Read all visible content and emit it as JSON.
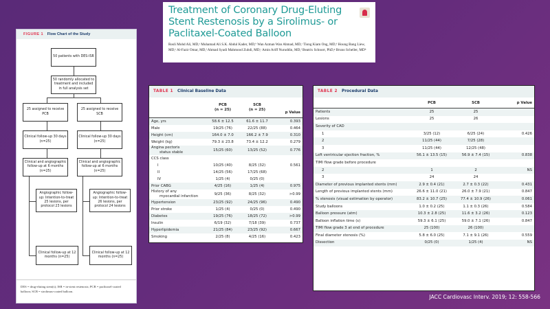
{
  "background_color": "#642c7c",
  "accent_teal": "#1f9a96",
  "label_red": "#e0344f",
  "article": {
    "title": "Treatment of Coronary Drug-Eluting Stent Restenosis by a Sirolimus- or Paclitaxel-Coated Balloon",
    "title_lines": [
      "Treatment of Coronary Drug-Eluting",
      "Stent Restenosis by a Sirolimus- or",
      "Paclitaxel-Coated Balloon"
    ],
    "authors": "Rosli Mohd Ali, MD,ᵃ Muhamad Ali S.K. Abdul Kader, MD,ᵇ Wan Azman Wan Ahmad, MD,ᶜ Tiong Kiam Ong, MD,ᵈ Houng Bang Liew, MD,ᵉ Al-Fazir Omar, MD,ᶠ Ahmad Syadi Mahmood Zuhdi, MD,ᶜ Amin Ariff Nuruddin, MD,ᶠ Beatrix Schnorr, PhD,ᵍ Bruno Scheller, MDʰ",
    "logo_icon": "crossmark-icon"
  },
  "figure": {
    "label": "FIGURE 1",
    "title": "Flow Chart of the Study",
    "boxes": {
      "enrolled": "50 patients with DES-ISR",
      "randomized": "50 randomly allocated to treatment and included in full analysis set",
      "pcb_assigned": "25 assigned to receive PCB",
      "scb_assigned": "25 assigned to receive SCB",
      "pcb_30d": "Clinical follow-up 30 days (n=25)",
      "scb_30d": "Clinical follow-up 30 days (n=25)",
      "pcb_6m": "Clinical and angiographic follow-up at 6 months (n=25)",
      "scb_6m": "Clinical and angiographic follow-up at 6 months (n=25)",
      "pcb_angio": "Angiographic follow-up: Intention-to-treat 25 lesions, per protocol 23 lesions",
      "scb_angio": "Angiographic follow-up: Intention-to-treat 26 lesions, per protocol 24 lesions",
      "pcb_12m": "Clinical follow-up at 12 months (n=25)",
      "scb_12m": "Clinical follow-up at 12 months (n=25)"
    },
    "footnote": "DES = drug-eluting stent(s); ISR = in-stent restenosis; PCB = paclitaxel-coated balloon; SCB = sirolimus-coated balloon."
  },
  "table1": {
    "label": "TABLE 1",
    "title": "Clinical Baseline Data",
    "headers": {
      "pcb": "PCB",
      "pcb_n": "(n = 25)",
      "scb": "SCB",
      "scb_n": "(n = 25)",
      "p": "p Value"
    },
    "rows": [
      {
        "label": "Age, yrs",
        "pcb": "58.6 ± 12.5",
        "scb": "61.6 ± 11.7",
        "p": "0.393"
      },
      {
        "label": "Male",
        "pcb": "19/25 (76)",
        "scb": "22/25 (88)",
        "p": "0.464"
      },
      {
        "label": "Height (cm)",
        "pcb": "164.0 ± 7.0",
        "scb": "166.2 ± 7.9",
        "p": "0.310"
      },
      {
        "label": "Weight (kg)",
        "pcb": "79.3 ± 23.8",
        "scb": "73.4 ± 12.2",
        "p": "0.279"
      },
      {
        "label": "Angina pectoris",
        "label2": "status stable",
        "pcb": "15/25 (60)",
        "scb": "13/25 (52)",
        "p": "0.776"
      },
      {
        "label": "CCS class",
        "pcb": "",
        "scb": "",
        "p": ""
      },
      {
        "label": "I",
        "pcb": "10/25 (40)",
        "scb": "8/25 (32)",
        "p": "0.561"
      },
      {
        "label": "II",
        "pcb": "14/25 (56)",
        "scb": "17/25 (68)",
        "p": ""
      },
      {
        "label": "IV",
        "pcb": "1/25 (4)",
        "scb": "0/25 (0)",
        "p": ""
      },
      {
        "label": "Prior CABG",
        "pcb": "4/25 (16)",
        "scb": "1/25 (4)",
        "p": "0.975"
      },
      {
        "label": "History of any",
        "label2": "myocardial infarction",
        "pcb": "9/25 (36)",
        "scb": "8/25 (32)",
        "p": ">0.99"
      },
      {
        "label": "Hypertension",
        "pcb": "23/25 (92)",
        "scb": "24/25 (96)",
        "p": "0.490"
      },
      {
        "label": "Prior stroke",
        "pcb": "1/25 (4)",
        "scb": "0/25 (0)",
        "p": "0.490"
      },
      {
        "label": "Diabetes",
        "pcb": "19/25 (76)",
        "scb": "18/25 (72)",
        "p": ">0.99"
      },
      {
        "label": "Insulin",
        "pcb": "6/19 (32)",
        "scb": "7/18 (39)",
        "p": "0.737"
      },
      {
        "label": "Hyperlipidemia",
        "pcb": "21/25 (84)",
        "scb": "23/25 (92)",
        "p": "0.667"
      },
      {
        "label": "Smoking",
        "pcb": "2/25 (8)",
        "scb": "4/25 (16)",
        "p": "0.423"
      }
    ]
  },
  "table2": {
    "label": "TABLE 2",
    "title": "Procedural Data",
    "headers": {
      "pcb": "PCB",
      "scb": "SCB",
      "p": "p Value"
    },
    "rows": [
      {
        "label": "Patients",
        "pcb": "25",
        "scb": "25",
        "p": ""
      },
      {
        "label": "Lesions",
        "pcb": "25",
        "scb": "26",
        "p": ""
      },
      {
        "label": "Severity of CAD",
        "pcb": "",
        "scb": "",
        "p": ""
      },
      {
        "label": "1",
        "pcb": "3/25 (12)",
        "scb": "6/25 (24)",
        "p": "0.426"
      },
      {
        "label": "2",
        "pcb": "11/25 (44)",
        "scb": "7/25 (28)",
        "p": ""
      },
      {
        "label": "3",
        "pcb": "11/25 (44)",
        "scb": "12/25 (48)",
        "p": ""
      },
      {
        "label": "Left ventricular ejection fraction, %",
        "pcb": "56.1 ± 13.5 (15)",
        "scb": "56.9 ± 7.4 (15)",
        "p": "0.838"
      },
      {
        "label": "TIMI flow grade before procedure",
        "pcb": "",
        "scb": "",
        "p": ""
      },
      {
        "label": "2",
        "pcb": "1",
        "scb": "2",
        "p": "NS"
      },
      {
        "label": "3",
        "pcb": "24",
        "scb": "24",
        "p": ""
      },
      {
        "label": "Diameter of previous implanted stents (mm)",
        "pcb": "2.9 ± 0.4 (21)",
        "scb": "2.7 ± 0.3 (22)",
        "p": "0.431"
      },
      {
        "label": "Length of previous implanted stents (mm)",
        "pcb": "26.6 ± 11.0 (21)",
        "scb": "26.0 ± 7.9 (21)",
        "p": "0.847"
      },
      {
        "label": "% stenosis (visual estimation by operator)",
        "pcb": "83.2 ± 10.7 (25)",
        "scb": "77.4 ± 10.9 (26)",
        "p": "0.061"
      },
      {
        "label": "Study balloons",
        "pcb": "1.0 ± 0.2 (25)",
        "scb": "1.1 ± 0.3 (26)",
        "p": "0.584"
      },
      {
        "label": "Balloon pressure (atm)",
        "pcb": "10.3 ± 2.8 (25)",
        "scb": "11.6 ± 3.2 (26)",
        "p": "0.123"
      },
      {
        "label": "Balloon inflation time (s)",
        "pcb": "59.3 ± 6.1 (25)",
        "scb": "59.0 ± 7.1 (26)",
        "p": "0.847"
      },
      {
        "label": "TIMI flow grade 3 at end of procedure",
        "pcb": "25 (100)",
        "scb": "26 (100)",
        "p": ""
      },
      {
        "label": "Final diameter stenosis (%)",
        "pcb": "5.8 ± 6.0 (25)",
        "scb": "7.1 ± 9.1 (26)",
        "p": "0.559"
      },
      {
        "label": "Dissection",
        "pcb": "0/25 (0)",
        "scb": "1/25 (4)",
        "p": "NS"
      }
    ]
  },
  "citation": "JACC Cardiovasc Interv. 2019; 12: 558-566"
}
